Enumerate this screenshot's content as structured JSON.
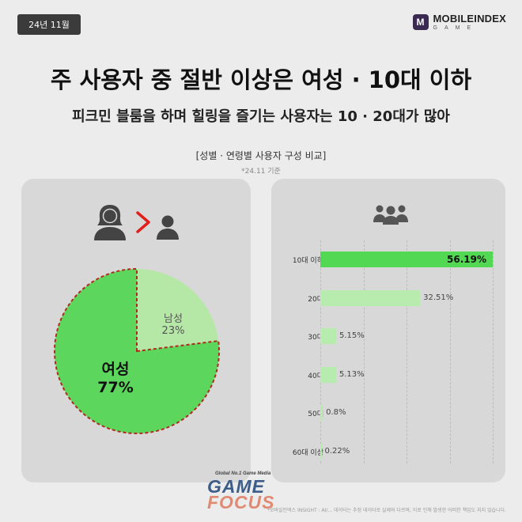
{
  "header": {
    "badge": "24년 11월",
    "brand_name": "MOBILEINDEX",
    "brand_sub": "GAME",
    "brand_mark": "M"
  },
  "title": "주 사용자 중 절반 이상은 여성 · 10대 이하",
  "subtitle": "피크민 블룸을 하며 힐링을 즐기는 사용자는 10 · 20대가 많아",
  "section_title": "[성별 · 연령별 사용자 구성 비교]",
  "date_note": "*24.11 기준",
  "footnote": "*모바일인덱스 INSIGHT : AI/... 데이터는 추정 데이터로 실제와 다르며, 이로 인해 발생한 어떠한 책임도 지지 않습니다.",
  "watermark": {
    "top": "Global No.1 Game Media",
    "line1": "GAME",
    "line2": "FOCUS"
  },
  "icons": {
    "female": "female-user-icon",
    "gt": "greater-than-icon",
    "male": "male-user-icon",
    "group": "user-group-icon"
  },
  "colors": {
    "female": "#5cd65c",
    "male": "#b5e8a6",
    "top_bar": "#52d852",
    "other_bar": "#b8ecae",
    "accent_red": "#e0201c"
  },
  "labels": {
    "male_name": "남성",
    "male_pct": "23%",
    "female_name": "여성",
    "female_pct": "77%"
  },
  "chart_data": [
    {
      "type": "pie",
      "categories": [
        "여성",
        "남성"
      ],
      "values": [
        77,
        23
      ],
      "value_labels": [
        "77%",
        "23%"
      ]
    },
    {
      "type": "bar",
      "orientation": "horizontal",
      "categories": [
        "10대 이하",
        "20대",
        "30대",
        "40대",
        "50대",
        "60대 이상"
      ],
      "values": [
        56.19,
        32.51,
        5.15,
        5.13,
        0.8,
        0.22
      ],
      "value_labels": [
        "56.19%",
        "32.51%",
        "5.15%",
        "5.13%",
        "0.8%",
        "0.22%"
      ],
      "xlim": [
        0,
        56.19
      ],
      "grid": true
    }
  ]
}
